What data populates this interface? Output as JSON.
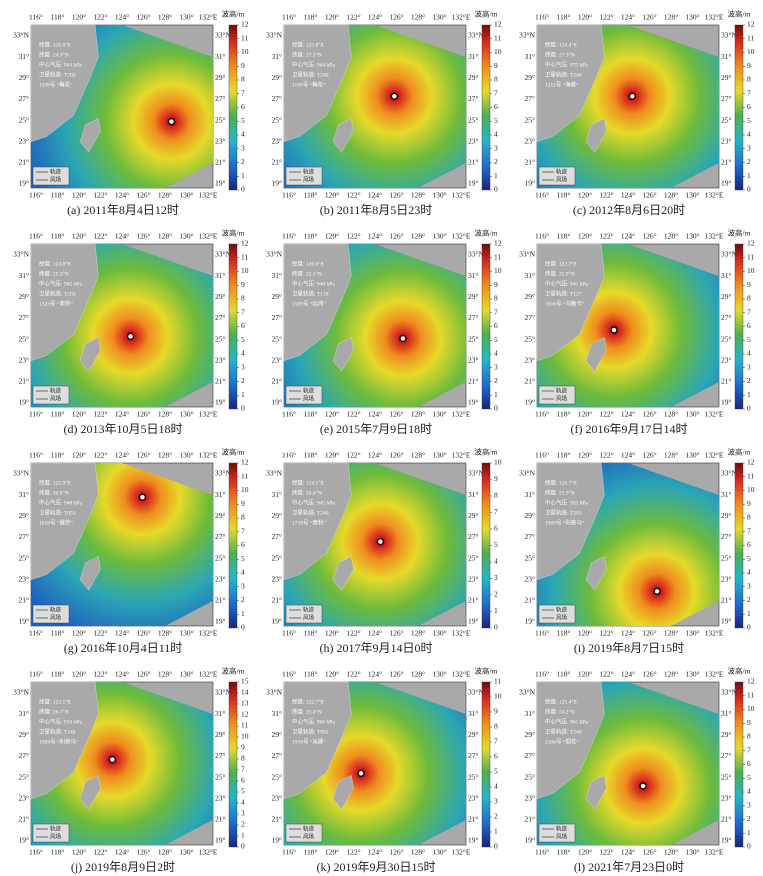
{
  "lon_labels": [
    "116°",
    "118°",
    "120°",
    "122°",
    "124°",
    "126°",
    "128°",
    "130°",
    "132°E"
  ],
  "lat_labels": [
    "33°N",
    "31°",
    "29°",
    "27°",
    "25°",
    "23°",
    "21°",
    "19°"
  ],
  "colorbar_label": "波高/m",
  "legend": [
    "轨迹",
    "风场"
  ],
  "panels": [
    {
      "caption": "(a) 2011年8月4日12时",
      "info": [
        "经度: 128.6°E",
        "纬度: 24.9°N",
        "中心气压: 944 hPa",
        "卫星轨道: T203",
        "1109号 “梅花”"
      ],
      "cbar_ticks": [
        0,
        1,
        2,
        3,
        4,
        5,
        6,
        7,
        8,
        9,
        10,
        11,
        12
      ]
    },
    {
      "caption": "(b) 2011年8月5日23时",
      "info": [
        "经度: 125.8°E",
        "纬度: 27.3°N",
        "中心气压: 944 hPa",
        "卫星轨道: T240",
        "1109号 “梅花”"
      ],
      "cbar_ticks": [
        0,
        1,
        2,
        3,
        4,
        5,
        6,
        7,
        8,
        9,
        10,
        11,
        12
      ]
    },
    {
      "caption": "(c) 2012年8月6日20时",
      "info": [
        "经度: 124.4°E",
        "纬度: 27.3°N",
        "中心气压: 975 hPa",
        "卫星轨道: T240",
        "1211号 “海葵”"
      ],
      "cbar_ticks": [
        0,
        1,
        2,
        3,
        4,
        5,
        6,
        7,
        8,
        9,
        10,
        11,
        12
      ]
    },
    {
      "caption": "(d) 2013年10月5日18时",
      "info": [
        "经度: 124.8°E",
        "纬度: 25.3°N",
        "中心气压: 945 hPa",
        "卫星轨道: T203",
        "1323号 “菲特”"
      ],
      "cbar_ticks": [
        0,
        1,
        2,
        3,
        4,
        5,
        6,
        7,
        8,
        9,
        10,
        11,
        12
      ]
    },
    {
      "caption": "(e) 2015年7月9日18时",
      "info": [
        "经度: 126.6°E",
        "纬度: 25.1°N",
        "中心气压: 940 hPa",
        "卫星轨道: T138",
        "1509号 “灿鸿”"
      ],
      "cbar_ticks": [
        0,
        1,
        2,
        3,
        4,
        5,
        6,
        7,
        8,
        9,
        10,
        11,
        12
      ]
    },
    {
      "caption": "(f) 2016年9月17日14时",
      "info": [
        "经度: 122.7°E",
        "纬度: 25.9°N",
        "中心气压: 945 hPa",
        "卫星轨道: T127",
        "1616号 “马勒卡”"
      ],
      "cbar_ticks": [
        0,
        1,
        2,
        3,
        4,
        5,
        6,
        7,
        8,
        9,
        10,
        11,
        12
      ]
    },
    {
      "caption": "(g) 2016年10月4日11时",
      "info": [
        "经度: 125.9°E",
        "纬度: 30.8°N",
        "中心气压: 948 hPa",
        "卫星轨道: T051",
        "1618号 “暹芭”"
      ],
      "cbar_ticks": [
        0,
        1,
        2,
        3,
        4,
        5,
        6,
        7,
        8,
        9,
        10,
        11,
        12
      ]
    },
    {
      "caption": "(h) 2017年9月14日0时",
      "info": [
        "经度: 124.5°E",
        "纬度: 26.6°N",
        "中心气压: 945 hPa",
        "卫星轨道: T240",
        "1718号 “泰利”"
      ],
      "cbar_ticks": [
        0,
        1,
        2,
        3,
        4,
        5,
        6,
        7,
        8,
        9,
        10
      ]
    },
    {
      "caption": "(i) 2019年8月7日15时",
      "info": [
        "经度: 126.7°E",
        "纬度: 21.9°N",
        "中心气压: 955 hPa",
        "卫星轨道: T203",
        "1909号 “利奇马”"
      ],
      "cbar_ticks": [
        0,
        1,
        2,
        3,
        4,
        5,
        6,
        7,
        8,
        9,
        10,
        11,
        12
      ]
    },
    {
      "caption": "(j) 2019年8月9日2时",
      "info": [
        "经度: 123.1°E",
        "纬度: 26.7°N",
        "中心气压: 930 hPa",
        "卫星轨道: T240",
        "1909号 “利奇马”"
      ],
      "cbar_ticks": [
        0,
        1,
        2,
        3,
        4,
        5,
        6,
        7,
        8,
        9,
        10,
        11,
        12,
        13,
        14,
        15
      ]
    },
    {
      "caption": "(k) 2019年9月30日15时",
      "info": [
        "经度: 122.7°E",
        "纬度: 25.4°N",
        "中心气压: 960 hPa",
        "卫星轨道: T062",
        "1918号 “米娜”"
      ],
      "cbar_ticks": [
        0,
        1,
        2,
        3,
        4,
        5,
        6,
        7,
        8,
        9,
        10,
        11
      ]
    },
    {
      "caption": "(l) 2021年7月23日0时",
      "info": [
        "经度: 125.4°E",
        "纬度: 24.2°N",
        "中心气压: 965 hPa",
        "卫星轨道: T240",
        "2106号 “烟花”"
      ],
      "cbar_ticks": [
        0,
        1,
        2,
        3,
        4,
        5,
        6,
        7,
        8,
        9,
        10,
        11,
        12
      ]
    }
  ]
}
